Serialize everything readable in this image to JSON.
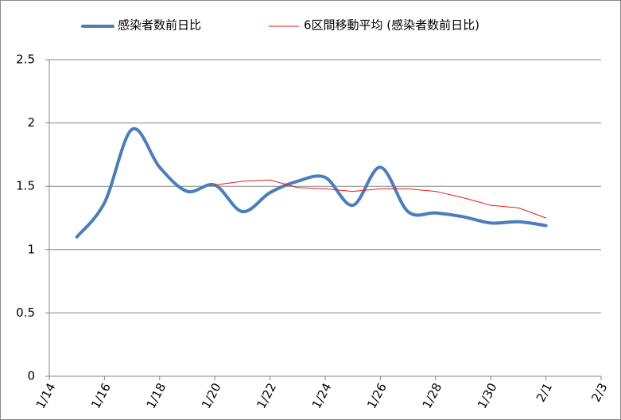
{
  "chart_data": {
    "type": "line",
    "categories": [
      "1/14",
      null,
      "1/16",
      null,
      "1/18",
      null,
      "1/20",
      null,
      "1/22",
      null,
      "1/24",
      null,
      "1/26",
      null,
      "1/28",
      null,
      "1/30",
      null,
      "2/1",
      null,
      "2/3"
    ],
    "series": [
      {
        "name": "感染者数前日比",
        "color": "#4a7ebb",
        "smooth": true,
        "width": 4,
        "values": [
          null,
          1.1,
          1.37,
          1.95,
          1.65,
          1.46,
          1.51,
          1.3,
          1.45,
          1.54,
          1.57,
          1.35,
          1.65,
          1.3,
          1.29,
          1.26,
          1.21,
          1.22,
          1.19,
          null,
          null
        ]
      },
      {
        "name": "6区間移動平均 (感染者数前日比)",
        "color": "#e8191b",
        "smooth": false,
        "width": 1,
        "values": [
          null,
          null,
          null,
          null,
          null,
          null,
          1.51,
          1.54,
          1.55,
          1.49,
          1.48,
          1.46,
          1.48,
          1.48,
          1.46,
          1.41,
          1.35,
          1.33,
          1.25,
          null,
          null
        ]
      }
    ],
    "ylim": [
      0,
      2.5
    ],
    "yticks": [
      0,
      0.5,
      1,
      1.5,
      2,
      2.5
    ],
    "grid": true,
    "legend": "top"
  }
}
